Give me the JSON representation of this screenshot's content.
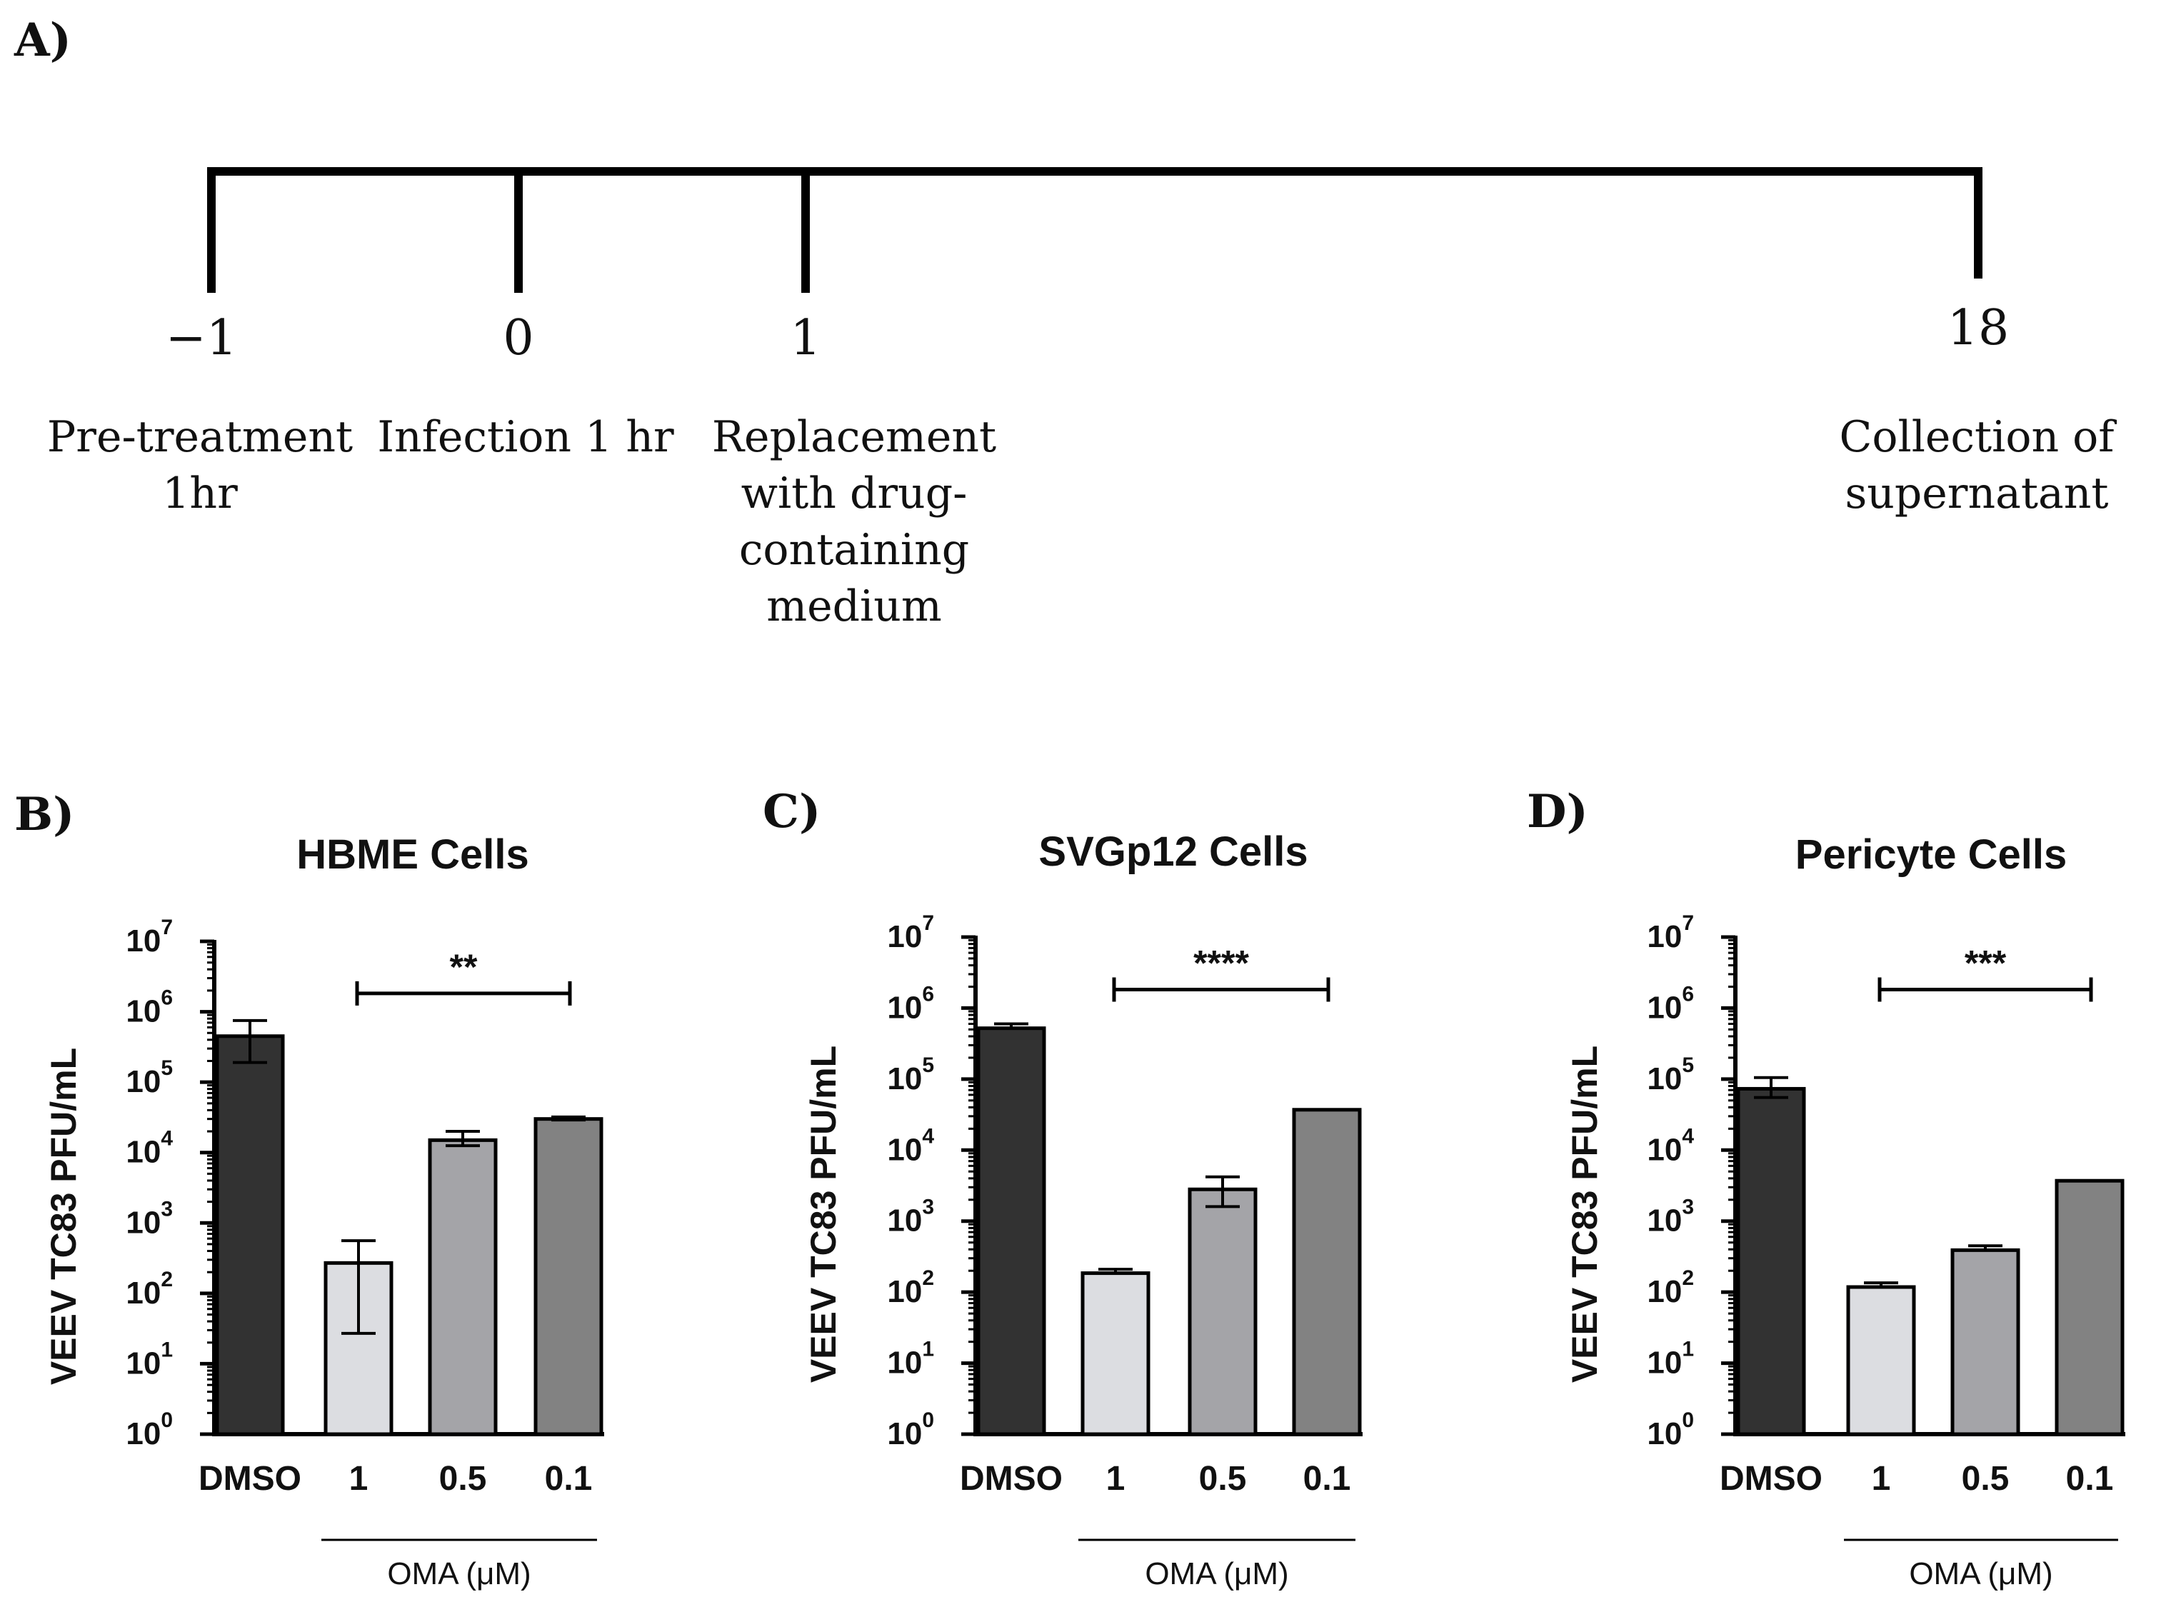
{
  "panel_labels": {
    "a": "A)",
    "b": "B)",
    "c": "C)",
    "d": "D)"
  },
  "timeline": {
    "points": [
      {
        "time": "−1",
        "label_lines": [
          "Pre-treatment",
          "1hr"
        ]
      },
      {
        "time": "0",
        "label_lines": [
          "Infection 1 hr"
        ]
      },
      {
        "time": "1",
        "label_lines": [
          "Replacement",
          "with drug-",
          "containing",
          "medium"
        ]
      },
      {
        "time": "18",
        "label_lines": [
          "Collection of",
          "supernatant"
        ]
      }
    ]
  },
  "chart_data": [
    {
      "type": "bar",
      "title": "HBME Cells",
      "ylabel": "VEEV TC83 PFU/mL",
      "yscale": "log",
      "ylim": [
        1,
        10000000
      ],
      "ytick_bases": [
        "10",
        "10",
        "10",
        "10",
        "10",
        "10",
        "10",
        "10"
      ],
      "ytick_exps": [
        "0",
        "1",
        "2",
        "3",
        "4",
        "5",
        "6",
        "7"
      ],
      "categories": [
        "DMSO",
        "1",
        "0.5",
        "0.1"
      ],
      "values": [
        450000,
        270,
        15000,
        30000
      ],
      "error_low": [
        190000,
        27,
        12500,
        29000
      ],
      "error_high": [
        750000,
        560,
        20000,
        32000
      ],
      "colors": [
        "#323232",
        "#dcdde1",
        "#a4a4a8",
        "#828282"
      ],
      "group_label": "OMA (μM)",
      "significance": "**"
    },
    {
      "type": "bar",
      "title": "SVGp12 Cells",
      "ylabel": "VEEV TC83 PFU/mL",
      "yscale": "log",
      "ylim": [
        1,
        10000000
      ],
      "ytick_bases": [
        "10",
        "10",
        "10",
        "10",
        "10",
        "10",
        "10",
        "10"
      ],
      "ytick_exps": [
        "0",
        "1",
        "2",
        "3",
        "4",
        "5",
        "6",
        "7"
      ],
      "categories": [
        "DMSO",
        "1",
        "0.5",
        "0.1"
      ],
      "values": [
        520000,
        185,
        2800,
        37000
      ],
      "error_low": [
        520000,
        185,
        1600,
        37000
      ],
      "error_high": [
        600000,
        210,
        4200,
        37000
      ],
      "colors": [
        "#323232",
        "#dcdde1",
        "#a4a4a8",
        "#828282"
      ],
      "group_label": "OMA (μM)",
      "significance": "****"
    },
    {
      "type": "bar",
      "title": "Pericyte Cells",
      "ylabel": "VEEV TC83 PFU/mL",
      "yscale": "log",
      "ylim": [
        1,
        10000000
      ],
      "ytick_bases": [
        "10",
        "10",
        "10",
        "10",
        "10",
        "10",
        "10",
        "10"
      ],
      "ytick_exps": [
        "0",
        "1",
        "2",
        "3",
        "4",
        "5",
        "6",
        "7"
      ],
      "categories": [
        "DMSO",
        "1",
        "0.5",
        "0.1"
      ],
      "values": [
        73000,
        118,
        390,
        3700
      ],
      "error_low": [
        55000,
        118,
        390,
        3700
      ],
      "error_high": [
        105000,
        135,
        450,
        3700
      ],
      "colors": [
        "#323232",
        "#dcdde1",
        "#a4a4a8",
        "#828282"
      ],
      "group_label": "OMA (μM)",
      "significance": "***"
    }
  ]
}
